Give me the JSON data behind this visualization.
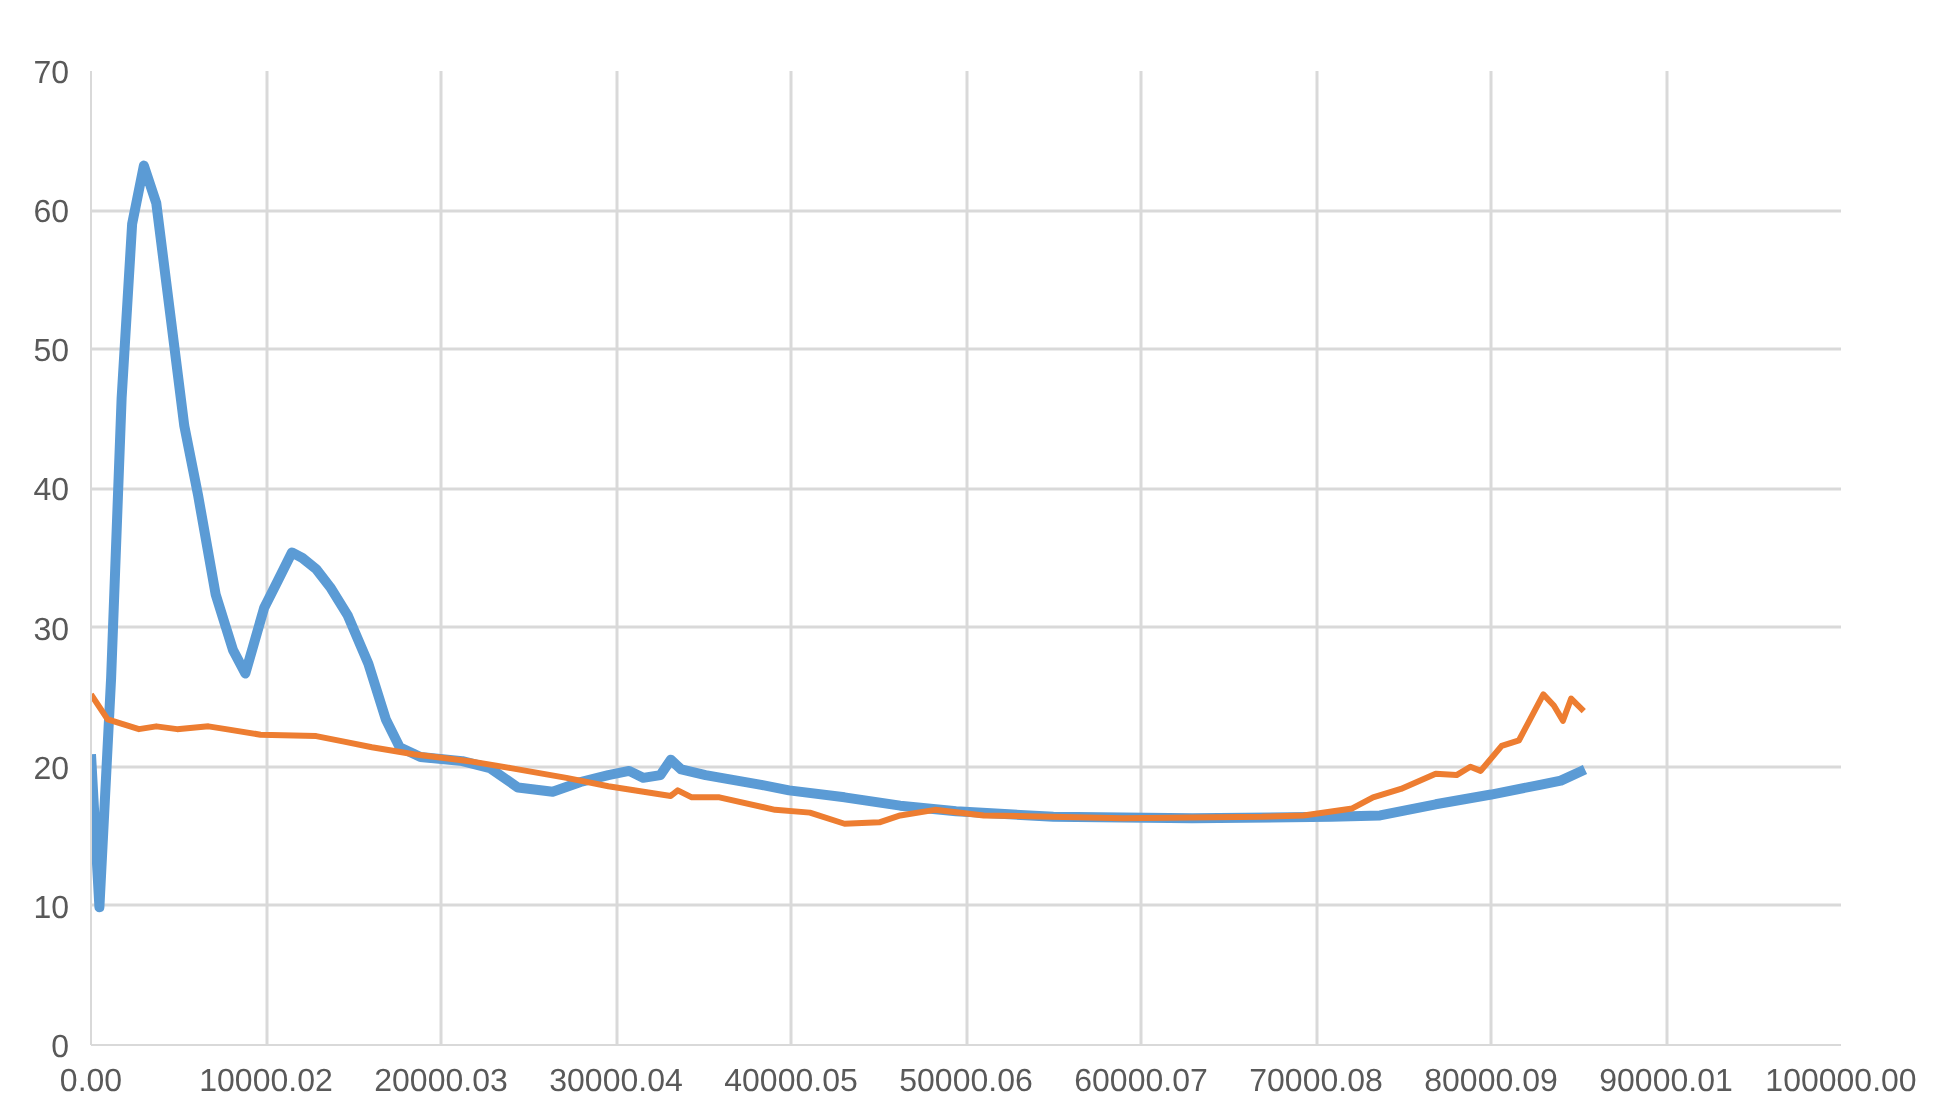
{
  "chart_data": {
    "type": "line",
    "xlim": [
      0,
      100000
    ],
    "ylim": [
      0,
      70
    ],
    "xticks": [
      {
        "value": 0,
        "label": "0.00"
      },
      {
        "value": 10000.02,
        "label": "10000.02"
      },
      {
        "value": 20000.03,
        "label": "20000.03"
      },
      {
        "value": 30000.04,
        "label": "30000.04"
      },
      {
        "value": 40000.05,
        "label": "40000.05"
      },
      {
        "value": 50000.06,
        "label": "50000.06"
      },
      {
        "value": 60000.07,
        "label": "60000.07"
      },
      {
        "value": 70000.08,
        "label": "70000.08"
      },
      {
        "value": 80000.09,
        "label": "80000.09"
      },
      {
        "value": 90000.01,
        "label": "90000.01"
      },
      {
        "value": 100000,
        "label": "100000.00"
      }
    ],
    "yticks": [
      0,
      10,
      20,
      30,
      40,
      50,
      60,
      70
    ],
    "grid": true,
    "marker": "none",
    "line_style": "solid",
    "series": [
      {
        "color": "#5b9bd5",
        "x": [
          0,
          480,
          1150,
          1750,
          2350,
          3020,
          3730,
          4530,
          5330,
          6120,
          7120,
          8110,
          8820,
          9890,
          10690,
          11480,
          12080,
          12870,
          13670,
          14660,
          15850,
          16850,
          17640,
          18830,
          21220,
          22800,
          24400,
          26380,
          27970,
          29560,
          30750,
          31550,
          32540,
          33130,
          33730,
          35120,
          38300,
          39890,
          43060,
          46240,
          49430,
          54990,
          62930,
          70880,
          73660,
          76840,
          80010,
          82800,
          83990,
          85370
        ],
        "values": [
          20.9,
          9.9,
          26.4,
          46.5,
          59,
          63.2,
          60.5,
          52.5,
          44.5,
          39.5,
          32.4,
          28.4,
          26.7,
          31.4,
          33.4,
          35.4,
          35,
          34.2,
          32.9,
          30.9,
          27.4,
          23.4,
          21.4,
          20.7,
          20.4,
          19.9,
          18.5,
          18.2,
          18.9,
          19.4,
          19.7,
          19.2,
          19.4,
          20.5,
          19.8,
          19.4,
          18.7,
          18.3,
          17.8,
          17.2,
          16.8,
          16.4,
          16.3,
          16.4,
          16.5,
          17.3,
          18.0,
          18.7,
          19.0,
          19.8
        ]
      },
      {
        "color": "#ed7d31",
        "x": [
          0,
          950,
          2740,
          3730,
          4920,
          6710,
          7710,
          9690,
          12870,
          14460,
          16050,
          18440,
          21610,
          23990,
          27170,
          29560,
          33130,
          33530,
          34330,
          35910,
          39090,
          41080,
          43060,
          45050,
          46240,
          48230,
          51010,
          58960,
          66900,
          69290,
          72070,
          73260,
          74850,
          76840,
          78030,
          78820,
          79410,
          80610,
          81600,
          82990,
          83590,
          84110,
          84580,
          85300
        ],
        "values": [
          25.2,
          23.4,
          22.7,
          22.9,
          22.7,
          22.9,
          22.7,
          22.3,
          22.2,
          21.8,
          21.4,
          20.9,
          20.4,
          19.9,
          19.2,
          18.6,
          17.9,
          18.3,
          17.8,
          17.8,
          16.9,
          16.7,
          15.9,
          16.0,
          16.5,
          16.9,
          16.5,
          16.3,
          16.4,
          16.5,
          17.0,
          17.8,
          18.4,
          19.5,
          19.4,
          20.0,
          19.7,
          21.5,
          21.9,
          25.2,
          24.4,
          23.3,
          24.9,
          24.0
        ]
      }
    ]
  }
}
